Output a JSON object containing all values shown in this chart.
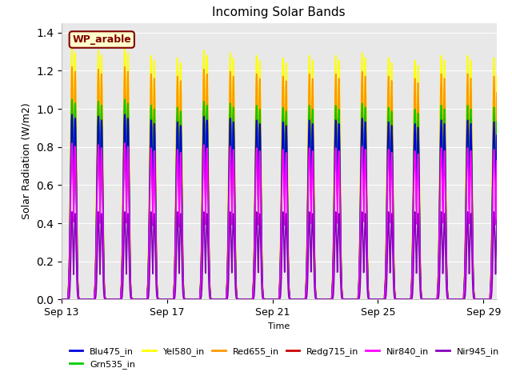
{
  "title": "Incoming Solar Bands",
  "xlabel": "Time",
  "ylabel": "Solar Radiation (W/m2)",
  "ylim": [
    0,
    1.45
  ],
  "yticks": [
    0.0,
    0.2,
    0.4,
    0.6,
    0.8,
    1.0,
    1.2,
    1.4
  ],
  "plot_bg_color": "#e8e8e8",
  "annotation_text": "WP_arable",
  "annotation_box_color": "#ffffcc",
  "annotation_border_color": "#800000",
  "annotation_text_color": "#800000",
  "series": [
    {
      "name": "Blu475_in",
      "color": "#0000dd",
      "lw": 1.2,
      "peak": 0.97,
      "zorder": 7
    },
    {
      "name": "Grn535_in",
      "color": "#00cc00",
      "lw": 1.2,
      "peak": 1.05,
      "zorder": 6
    },
    {
      "name": "Yel580_in",
      "color": "#ffff00",
      "lw": 1.2,
      "peak": 1.32,
      "zorder": 3
    },
    {
      "name": "Red655_in",
      "color": "#ff9900",
      "lw": 1.2,
      "peak": 1.22,
      "zorder": 4
    },
    {
      "name": "Redg715_in",
      "color": "#cc0000",
      "lw": 1.2,
      "peak": 1.0,
      "zorder": 5
    },
    {
      "name": "Nir840_in",
      "color": "#ff00ff",
      "lw": 1.2,
      "peak": 0.82,
      "zorder": 8
    },
    {
      "name": "Nir945_in",
      "color": "#8800bb",
      "lw": 1.2,
      "peak": 0.46,
      "zorder": 9
    }
  ],
  "num_days": 17,
  "start_day": 13,
  "x_ticks_days": [
    13,
    17,
    21,
    25,
    29
  ],
  "x_tick_labels": [
    "Sep 13",
    "Sep 17",
    "Sep 21",
    "Sep 25",
    "Sep 29"
  ],
  "day_peak_variation": [
    1.0,
    0.99,
    1.0,
    0.97,
    0.96,
    0.99,
    0.98,
    0.97,
    0.96,
    0.97,
    0.97,
    0.98,
    0.96,
    0.95,
    0.97,
    0.97,
    0.96
  ],
  "day_peak2_variation": [
    0.44,
    0.43,
    0.44,
    0.43,
    0.42,
    0.43,
    0.43,
    0.42,
    0.42,
    0.43,
    0.42,
    0.43,
    0.42,
    0.41,
    0.43,
    0.43,
    0.42
  ]
}
